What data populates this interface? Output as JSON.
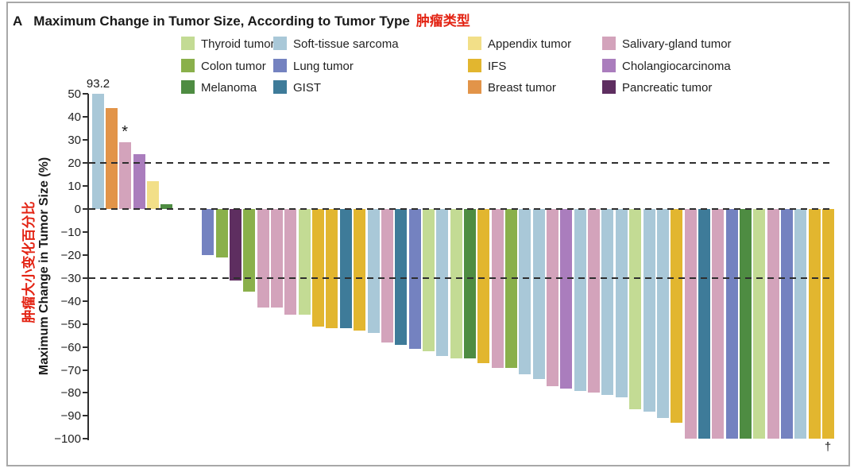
{
  "panel": {
    "letter": "A",
    "title": "Maximum Change in Tumor Size, According to Tumor Type",
    "title_cn": "肿瘤类型"
  },
  "y_axis": {
    "label_en": "Maximum Change in Tumor Size (%)",
    "label_cn": "肿瘤大小变化百分比"
  },
  "annotations": {
    "truncated_bar_label": "93.2",
    "asterisk": "*",
    "dagger": "†"
  },
  "legend": {
    "columns": [
      [
        {
          "label": "Thyroid tumor",
          "color": "#c3db94"
        },
        {
          "label": "Colon tumor",
          "color": "#8ab04b"
        },
        {
          "label": "Melanoma",
          "color": "#4e8c42"
        }
      ],
      [
        {
          "label": "Soft-tissue sarcoma",
          "color": "#a9c8d8"
        },
        {
          "label": "Lung tumor",
          "color": "#7482c0"
        },
        {
          "label": "GIST",
          "color": "#3e7b99"
        }
      ],
      [
        {
          "label": "Appendix tumor",
          "color": "#f2df88"
        },
        {
          "label": "IFS",
          "color": "#e2b62f"
        },
        {
          "label": "Breast tumor",
          "color": "#e29449"
        }
      ],
      [
        {
          "label": "Salivary-gland tumor",
          "color": "#d3a3bb"
        },
        {
          "label": "Cholangiocarcinoma",
          "color": "#aa7dbd"
        },
        {
          "label": "Pancreatic tumor",
          "color": "#5e2e60"
        }
      ]
    ]
  },
  "chart_data": {
    "type": "bar",
    "title": "Maximum Change in Tumor Size, According to Tumor Type",
    "ylabel": "Maximum Change in Tumor Size (%)",
    "ylim": [
      -100,
      50
    ],
    "yticks": [
      50,
      40,
      30,
      20,
      10,
      0,
      -10,
      -20,
      -30,
      -40,
      -50,
      -60,
      -70,
      -80,
      -90,
      -100
    ],
    "reference_lines": [
      20,
      0,
      -30
    ],
    "grid": "dashed-reference-lines-only",
    "legend_position": "top",
    "note": "First bar value 93.2 is truncated at axis maximum 50; two empty slots after positive bars represent patients with 0% change; dagger marks last bar.",
    "tumor_type_colors": {
      "thyroid_tumor": "#c3db94",
      "colon_tumor": "#8ab04b",
      "melanoma": "#4e8c42",
      "soft_tissue_sarcoma": "#a9c8d8",
      "lung_tumor": "#7482c0",
      "gist": "#3e7b99",
      "appendix_tumor": "#f2df88",
      "ifs": "#e2b62f",
      "breast_tumor": "#e29449",
      "salivary_gland_tumor": "#d3a3bb",
      "cholangiocarcinoma": "#aa7dbd",
      "pancreatic_tumor": "#5e2e60"
    },
    "bars": [
      {
        "slot": 0,
        "type": "soft_tissue_sarcoma",
        "value": 93.2,
        "plotted_value": 50,
        "annotation": "93.2"
      },
      {
        "slot": 1,
        "type": "breast_tumor",
        "value": 44
      },
      {
        "slot": 2,
        "type": "salivary_gland_tumor",
        "value": 29,
        "annotation": "*"
      },
      {
        "slot": 3,
        "type": "cholangiocarcinoma",
        "value": 24
      },
      {
        "slot": 4,
        "type": "appendix_tumor",
        "value": 12
      },
      {
        "slot": 5,
        "type": "melanoma",
        "value": 2
      },
      {
        "slot": 8,
        "type": "lung_tumor",
        "value": -20
      },
      {
        "slot": 9,
        "type": "colon_tumor",
        "value": -21
      },
      {
        "slot": 10,
        "type": "pancreatic_tumor",
        "value": -31
      },
      {
        "slot": 11,
        "type": "colon_tumor",
        "value": -36
      },
      {
        "slot": 12,
        "type": "salivary_gland_tumor",
        "value": -43
      },
      {
        "slot": 13,
        "type": "salivary_gland_tumor",
        "value": -43
      },
      {
        "slot": 14,
        "type": "salivary_gland_tumor",
        "value": -46
      },
      {
        "slot": 15,
        "type": "thyroid_tumor",
        "value": -46
      },
      {
        "slot": 16,
        "type": "ifs",
        "value": -51
      },
      {
        "slot": 17,
        "type": "ifs",
        "value": -52
      },
      {
        "slot": 18,
        "type": "gist",
        "value": -52
      },
      {
        "slot": 19,
        "type": "ifs",
        "value": -53
      },
      {
        "slot": 20,
        "type": "soft_tissue_sarcoma",
        "value": -54
      },
      {
        "slot": 21,
        "type": "salivary_gland_tumor",
        "value": -58
      },
      {
        "slot": 22,
        "type": "gist",
        "value": -59
      },
      {
        "slot": 23,
        "type": "lung_tumor",
        "value": -61
      },
      {
        "slot": 24,
        "type": "thyroid_tumor",
        "value": -62
      },
      {
        "slot": 25,
        "type": "soft_tissue_sarcoma",
        "value": -64
      },
      {
        "slot": 26,
        "type": "thyroid_tumor",
        "value": -65
      },
      {
        "slot": 27,
        "type": "melanoma",
        "value": -65
      },
      {
        "slot": 28,
        "type": "ifs",
        "value": -67
      },
      {
        "slot": 29,
        "type": "salivary_gland_tumor",
        "value": -69
      },
      {
        "slot": 30,
        "type": "colon_tumor",
        "value": -69
      },
      {
        "slot": 31,
        "type": "soft_tissue_sarcoma",
        "value": -72
      },
      {
        "slot": 32,
        "type": "soft_tissue_sarcoma",
        "value": -74
      },
      {
        "slot": 33,
        "type": "salivary_gland_tumor",
        "value": -77
      },
      {
        "slot": 34,
        "type": "cholangiocarcinoma",
        "value": -78
      },
      {
        "slot": 35,
        "type": "soft_tissue_sarcoma",
        "value": -79
      },
      {
        "slot": 36,
        "type": "salivary_gland_tumor",
        "value": -80
      },
      {
        "slot": 37,
        "type": "soft_tissue_sarcoma",
        "value": -81
      },
      {
        "slot": 38,
        "type": "soft_tissue_sarcoma",
        "value": -82
      },
      {
        "slot": 39,
        "type": "thyroid_tumor",
        "value": -87
      },
      {
        "slot": 40,
        "type": "soft_tissue_sarcoma",
        "value": -88
      },
      {
        "slot": 41,
        "type": "soft_tissue_sarcoma",
        "value": -91
      },
      {
        "slot": 42,
        "type": "ifs",
        "value": -93
      },
      {
        "slot": 43,
        "type": "salivary_gland_tumor",
        "value": -100
      },
      {
        "slot": 44,
        "type": "gist",
        "value": -100
      },
      {
        "slot": 45,
        "type": "salivary_gland_tumor",
        "value": -100
      },
      {
        "slot": 46,
        "type": "lung_tumor",
        "value": -100
      },
      {
        "slot": 47,
        "type": "melanoma",
        "value": -100
      },
      {
        "slot": 48,
        "type": "thyroid_tumor",
        "value": -100
      },
      {
        "slot": 49,
        "type": "salivary_gland_tumor",
        "value": -100
      },
      {
        "slot": 50,
        "type": "lung_tumor",
        "value": -100
      },
      {
        "slot": 51,
        "type": "soft_tissue_sarcoma",
        "value": -100
      },
      {
        "slot": 52,
        "type": "ifs",
        "value": -100
      },
      {
        "slot": 53,
        "type": "ifs",
        "value": -100,
        "annotation": "†"
      }
    ]
  }
}
